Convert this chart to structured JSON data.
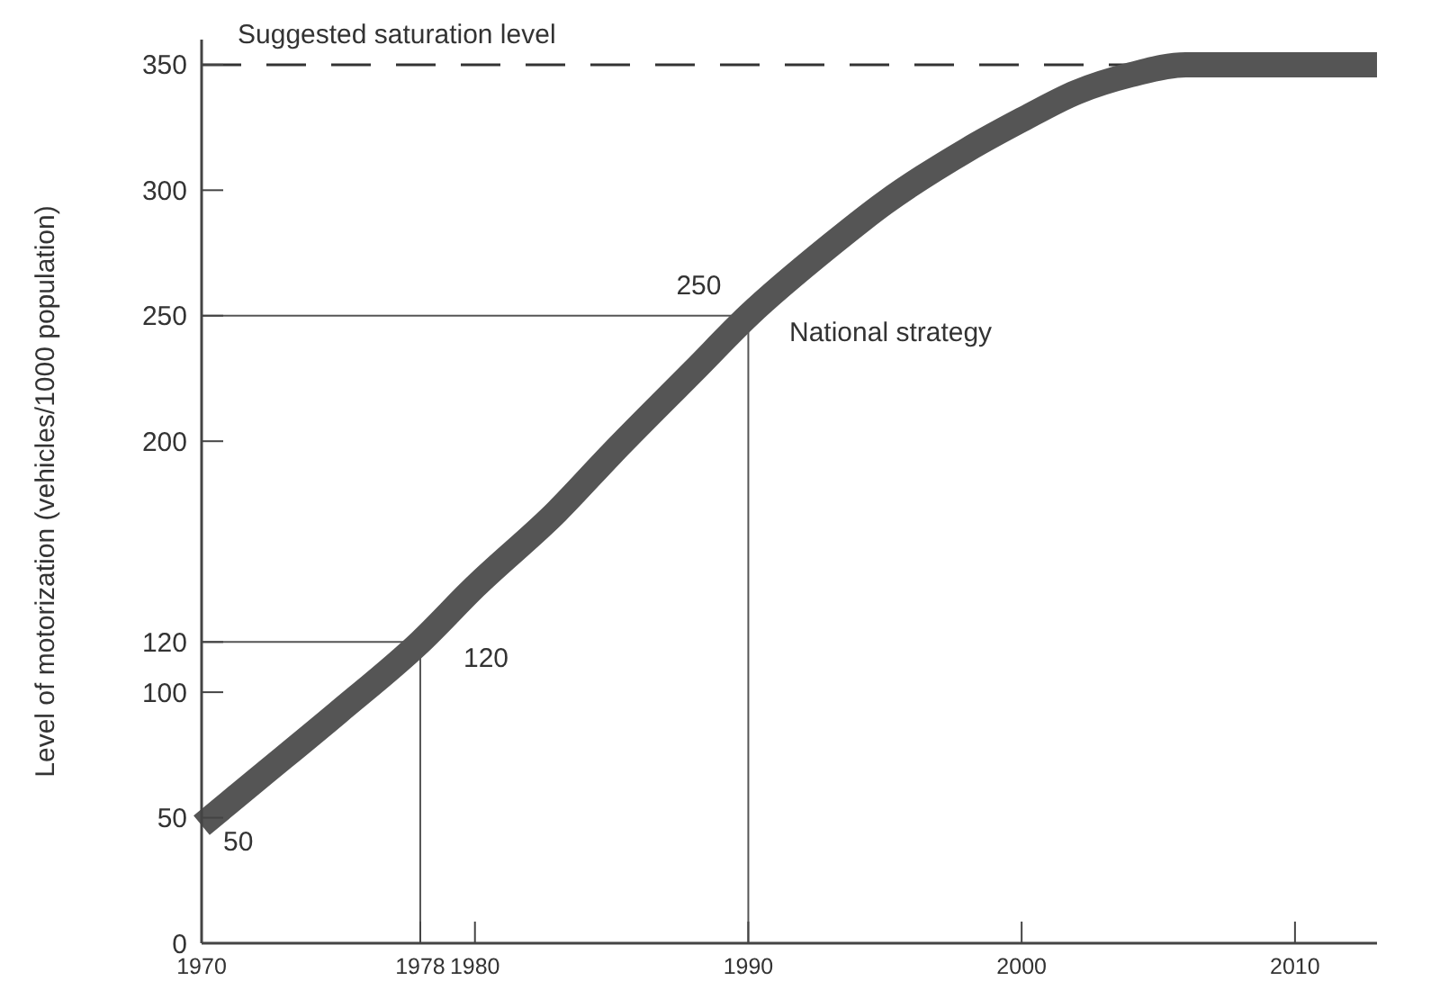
{
  "chart_data": {
    "type": "line",
    "ylabel": "Level of motorization (vehicles/1000 population)",
    "x": [
      1970,
      1972,
      1975,
      1978,
      1980,
      1983,
      1985,
      1988,
      1990,
      1993,
      1995,
      1998,
      2000,
      2002,
      2004,
      2006,
      2008,
      2010,
      2013
    ],
    "series": [
      {
        "name": "National strategy",
        "color": "#555555",
        "values": [
          47,
          65,
          92,
          120,
          142,
          172,
          195,
          228,
          250,
          278,
          295,
          316,
          328,
          339,
          346,
          350,
          350,
          350,
          350
        ]
      }
    ],
    "xlim": [
      1970,
      2013
    ],
    "ylim": [
      0,
      360
    ],
    "xticks": [
      1970,
      1978,
      1980,
      1990,
      2000,
      2010
    ],
    "yticks": [
      0,
      50,
      100,
      120,
      200,
      250,
      300,
      350
    ],
    "ref_lines": [
      {
        "axis": "y",
        "value": 350,
        "label": "Suggested saturation level",
        "line_style": "dashed",
        "color": "#333333"
      },
      {
        "axis": "y",
        "value": 120,
        "color": "#555555"
      },
      {
        "axis": "y",
        "value": 250,
        "color": "#555555"
      },
      {
        "axis": "x",
        "value": 1978,
        "color": "#555555"
      },
      {
        "axis": "x",
        "value": 1990,
        "color": "#555555"
      }
    ],
    "annotations": [
      {
        "text": "50",
        "x": 1970,
        "y": 50
      },
      {
        "text": "120",
        "x": 1978,
        "y": 120
      },
      {
        "text": "250",
        "x": 1990,
        "y": 250
      }
    ],
    "grid": false,
    "marker": "none",
    "line_style": "solid"
  }
}
